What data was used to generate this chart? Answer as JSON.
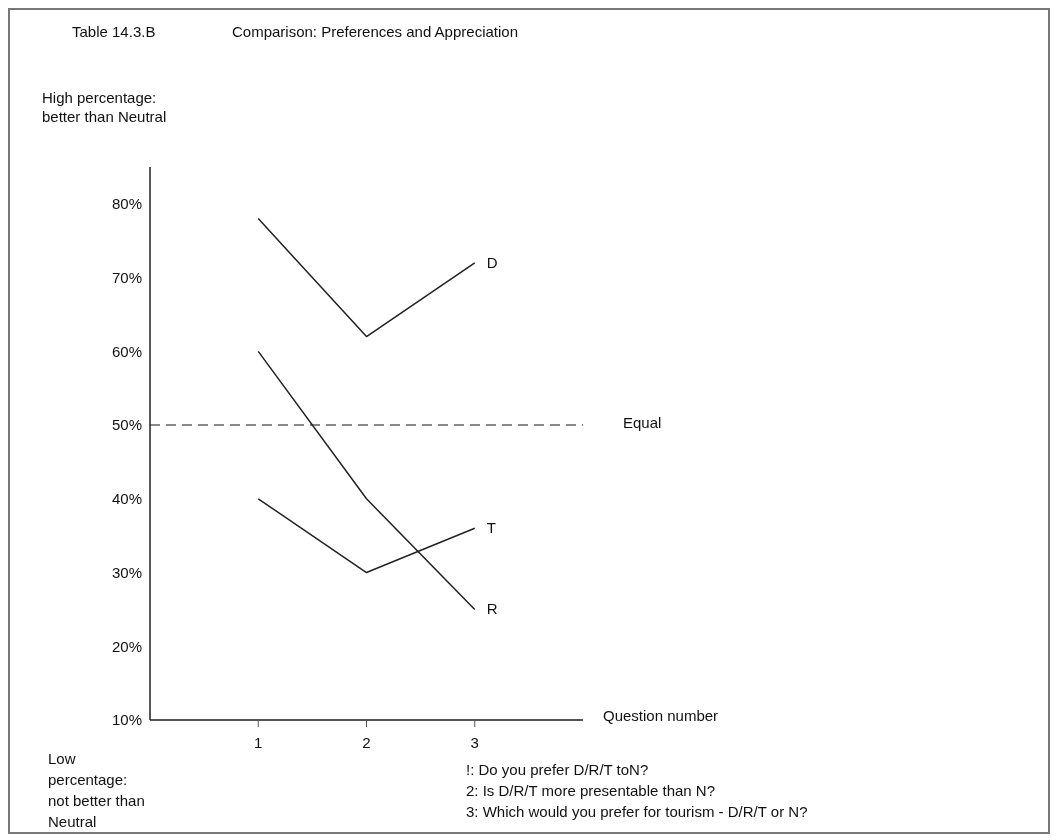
{
  "chart_data": {
    "type": "line",
    "title": "Comparison: Preferences and Appreciation",
    "xlabel": "Question number",
    "ylabel": "High percentage: better than Neutral",
    "annotations": [
      "Table 14.3.B",
      "Low percentage: not better than Neutral",
      "!: Do you prefer D/R/T toN?",
      "2: Is D/R/T more presentable than N?",
      "3: Which would you prefer for tourism - D/R/T or N?"
    ],
    "x": [
      1,
      2,
      3
    ],
    "series": [
      {
        "name": "D",
        "color": "#222222",
        "values": [
          78,
          62,
          72
        ]
      },
      {
        "name": "R",
        "color": "#222222",
        "values": [
          60,
          40,
          25
        ]
      },
      {
        "name": "T",
        "color": "#222222",
        "values": [
          40,
          30,
          36
        ]
      }
    ],
    "xlim": [
      0,
      4
    ],
    "xticks": [
      1,
      2,
      3
    ],
    "ylim": [
      10,
      85
    ],
    "yticks": [
      {
        "value": 10,
        "label": "10%"
      },
      {
        "value": 20,
        "label": "20%"
      },
      {
        "value": 30,
        "label": "30%"
      },
      {
        "value": 40,
        "label": "40%"
      },
      {
        "value": 50,
        "label": "50%"
      },
      {
        "value": 60,
        "label": "60%"
      },
      {
        "value": 70,
        "label": "70%"
      },
      {
        "value": 80,
        "label": "80%"
      }
    ],
    "ref_lines": [
      {
        "axis": "y",
        "value": 50,
        "label": "Equal",
        "color": "#888888",
        "line_style": "dashed"
      }
    ],
    "grid": false,
    "legend": false,
    "marker": "none",
    "line_style": "solid"
  }
}
